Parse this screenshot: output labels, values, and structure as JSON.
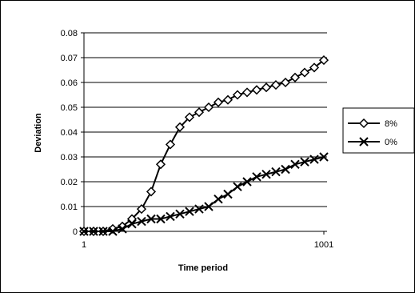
{
  "chart_data": {
    "type": "line",
    "xlabel": "Time period",
    "ylabel": "Deviation",
    "x_tick_labels": [
      "1",
      "1001"
    ],
    "y_ticks": [
      "0",
      "0.01",
      "0.02",
      "0.03",
      "0.04",
      "0.05",
      "0.06",
      "0.07",
      "0.08"
    ],
    "ylim": [
      0,
      0.08
    ],
    "grid": true,
    "legend_position": "right",
    "series": [
      {
        "name": "8%",
        "marker": "diamond",
        "color": "#000000",
        "values": [
          0,
          0,
          0,
          0.001,
          0.002,
          0.005,
          0.009,
          0.016,
          0.027,
          0.035,
          0.042,
          0.046,
          0.048,
          0.05,
          0.052,
          0.053,
          0.055,
          0.056,
          0.057,
          0.058,
          0.059,
          0.06,
          0.062,
          0.064,
          0.066,
          0.069
        ]
      },
      {
        "name": "0%",
        "marker": "x",
        "color": "#000000",
        "values": [
          0,
          0,
          0,
          0,
          0.001,
          0.003,
          0.004,
          0.005,
          0.005,
          0.006,
          0.007,
          0.008,
          0.009,
          0.01,
          0.013,
          0.015,
          0.018,
          0.02,
          0.022,
          0.023,
          0.024,
          0.025,
          0.027,
          0.028,
          0.029,
          0.03
        ]
      }
    ]
  }
}
